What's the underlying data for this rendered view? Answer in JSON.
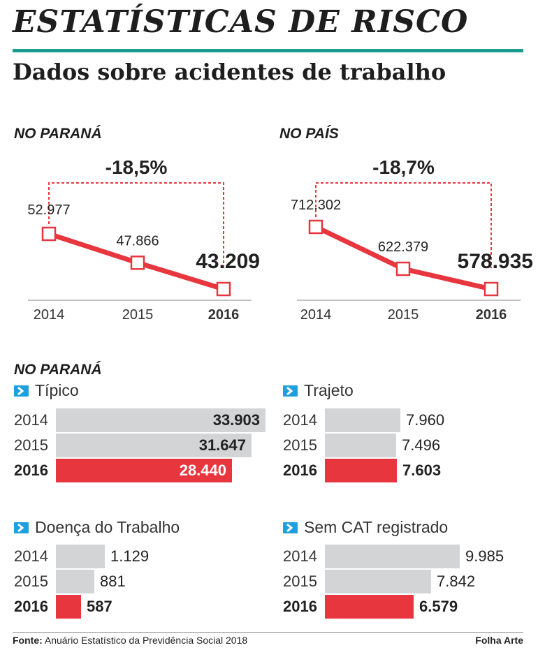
{
  "header": {
    "title": "ESTATÍSTICAS DE RISCO",
    "subtitle": "Dados sobre acidentes de trabalho"
  },
  "colors": {
    "accent": "#199c8e",
    "highlight": "#e8363f",
    "grey_bar": "#d3d4d6",
    "icon": "#1fa0de"
  },
  "chart_data": [
    {
      "type": "line",
      "title": "NO PARANÁ",
      "x": [
        "2014",
        "2015",
        "2016"
      ],
      "values": [
        52977,
        47866,
        43209
      ],
      "value_labels": [
        "52.977",
        "47.866",
        "43.209"
      ],
      "change_label": "-18,5%"
    },
    {
      "type": "line",
      "title": "NO PAÍS",
      "x": [
        "2014",
        "2015",
        "2016"
      ],
      "values": [
        712302,
        622379,
        578935
      ],
      "value_labels": [
        "712.302",
        "622.379",
        "578.935"
      ],
      "change_label": "-18,7%"
    },
    {
      "type": "bar",
      "title": "Típico",
      "categories": [
        "2014",
        "2015",
        "2016"
      ],
      "values": [
        33903,
        31647,
        28440
      ],
      "value_labels": [
        "33.903",
        "31.647",
        "28.440"
      ]
    },
    {
      "type": "bar",
      "title": "Trajeto",
      "categories": [
        "2014",
        "2015",
        "2016"
      ],
      "values": [
        7960,
        7496,
        7603
      ],
      "value_labels": [
        "7.960",
        "7.496",
        "7.603"
      ]
    },
    {
      "type": "bar",
      "title": "Doença do Trabalho",
      "categories": [
        "2014",
        "2015",
        "2016"
      ],
      "values": [
        1129,
        881,
        587
      ],
      "value_labels": [
        "1.129",
        "881",
        "587"
      ]
    },
    {
      "type": "bar",
      "title": "Sem CAT registrado",
      "categories": [
        "2014",
        "2015",
        "2016"
      ],
      "values": [
        9985,
        7842,
        6579
      ],
      "value_labels": [
        "9.985",
        "7.842",
        "6.579"
      ]
    }
  ],
  "bars_section_title": "NO PARANÁ",
  "footer": {
    "source_label": "Fonte:",
    "source_text": " Anuário Estatístico da Previdência Social 2018",
    "brand": "Folha Arte"
  }
}
